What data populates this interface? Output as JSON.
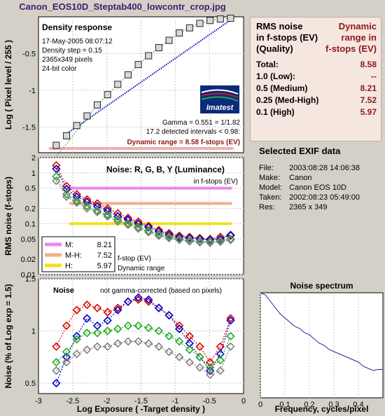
{
  "window_title": "Canon_EOS10D_Steptab400_lowcontr_crop.jpg",
  "density": {
    "heading": "Density response",
    "info": [
      "17-May-2005 08:07:12",
      "Density step = 0.15",
      "2365x349 pixels",
      "24-bit color"
    ],
    "gamma_text": "Gamma = 0.551 = 1/1.82",
    "intervals_text": "17.2 detected intervals < 0.98:",
    "dynamic_range_text": "Dynamic range = 8.58 f-stops (EV)",
    "logo_text": "Imatest"
  },
  "noise_table": {
    "header_left": [
      "RMS noise",
      "in f-stops (EV)",
      "(Quality)"
    ],
    "header_right": [
      "Dynamic",
      "range in",
      "f-stops (EV)"
    ],
    "rows": [
      {
        "label": "Total:",
        "value": "8.58"
      },
      {
        "label": "1.0   (Low):",
        "value": "--"
      },
      {
        "label": "0.5   (Medium)",
        "value": "8.21"
      },
      {
        "label": "0.25 (Med-High)",
        "value": "7.52"
      },
      {
        "label": "0.1   (High)",
        "value": "5.97"
      }
    ]
  },
  "exif": {
    "heading": "Selected EXIF data",
    "lines": [
      {
        "key": "File:",
        "value": "2003:08:28 14:06:38"
      },
      {
        "key": "Make:",
        "value": "Canon"
      },
      {
        "key": "Model:",
        "value": "Canon EOS 10D"
      },
      {
        "key": "Taken:",
        "value": "2002:08:23 05:49:00"
      },
      {
        "key": "Res:",
        "value": "2365 x 349"
      }
    ]
  },
  "colors": {
    "red": "#dd0000",
    "green": "#22aa22",
    "blue": "#0000cc",
    "gray": "#808080",
    "magenta_line": "#ee88ee",
    "peach_line": "#f4b08a",
    "yellow_line": "#f0e020",
    "density_fit": "#0000cc",
    "density_ideal": "#22aa22",
    "range_bar": "#f0b0b0",
    "table_bg": "#f6e6e0",
    "dark_red": "#8b1a1a"
  },
  "chart_data": [
    {
      "type": "scatter",
      "title": "Density response",
      "ylabel": "Log ( Pixel level / 255 )",
      "xlim": [
        -3,
        0
      ],
      "ylim": [
        -1.85,
        0
      ],
      "yticks": [
        "-0.5",
        "-1",
        "-1.5"
      ],
      "x": [
        -2.74,
        -2.59,
        -2.44,
        -2.29,
        -2.14,
        -1.99,
        -1.84,
        -1.69,
        -1.54,
        -1.39,
        -1.24,
        -1.09,
        -0.94,
        -0.79,
        -0.64,
        -0.49,
        -0.34,
        -0.19
      ],
      "y": [
        -1.75,
        -1.62,
        -1.48,
        -1.35,
        -1.2,
        -1.06,
        -0.92,
        -0.79,
        -0.65,
        -0.53,
        -0.42,
        -0.32,
        -0.22,
        -0.15,
        -0.09,
        -0.05,
        -0.03,
        -0.02
      ]
    },
    {
      "type": "line",
      "title": "Noise: R, G, B, Y (Luminance)",
      "subtitle": "in f-stops (EV)",
      "ylabel": "RMS noise (f-stops)",
      "xlim": [
        -3,
        0
      ],
      "ylim": [
        0.01,
        2
      ],
      "y_scale": "log",
      "yticks": [
        "2",
        "1",
        "0.5",
        "0.2",
        "0.1",
        "0.05",
        "0.02",
        "0.01"
      ],
      "reference_lines": [
        0.5,
        0.25,
        0.1
      ],
      "x": [
        -2.74,
        -2.59,
        -2.44,
        -2.29,
        -2.14,
        -1.99,
        -1.84,
        -1.69,
        -1.54,
        -1.39,
        -1.24,
        -1.09,
        -0.94,
        -0.79,
        -0.64,
        -0.49,
        -0.34,
        -0.19
      ],
      "series": [
        {
          "name": "R",
          "values": [
            1.4,
            0.55,
            0.38,
            0.3,
            0.25,
            0.2,
            0.16,
            0.13,
            0.11,
            0.09,
            0.075,
            0.065,
            0.058,
            0.055,
            0.052,
            0.05,
            0.055,
            0.058
          ]
        },
        {
          "name": "B",
          "values": [
            1.2,
            0.48,
            0.34,
            0.27,
            0.22,
            0.18,
            0.14,
            0.12,
            0.1,
            0.085,
            0.07,
            0.06,
            0.054,
            0.052,
            0.05,
            0.048,
            0.05,
            0.06
          ]
        },
        {
          "name": "G",
          "values": [
            0.85,
            0.38,
            0.28,
            0.22,
            0.18,
            0.15,
            0.12,
            0.1,
            0.085,
            0.072,
            0.062,
            0.055,
            0.05,
            0.047,
            0.045,
            0.044,
            0.046,
            0.05
          ]
        },
        {
          "name": "Y",
          "values": [
            0.7,
            0.34,
            0.26,
            0.2,
            0.17,
            0.14,
            0.11,
            0.095,
            0.08,
            0.068,
            0.058,
            0.052,
            0.048,
            0.045,
            0.043,
            0.042,
            0.044,
            0.048
          ]
        }
      ],
      "legend": [
        {
          "label": "M:",
          "value": "8.21"
        },
        {
          "label": "M-H:",
          "value": "7.52"
        },
        {
          "label": "H:",
          "value": "5.97"
        }
      ],
      "legend_notes": [
        "f-stop (EV)",
        "Dynamic range"
      ]
    },
    {
      "type": "line",
      "title": "Noise",
      "subtitle": "not gamma-corrected (based on pixels)",
      "xlabel": "Log Exposure ( -Target density )",
      "ylabel": "Noise (% of Log exp = 1.5)",
      "xlim": [
        -3,
        0
      ],
      "ylim": [
        0.4,
        1.5
      ],
      "xticks": [
        "-3",
        "-2.5",
        "-2",
        "-1.5",
        "-1",
        "-0.5",
        "0"
      ],
      "yticks": [
        "1.5",
        "1",
        "0.5"
      ],
      "x": [
        -2.74,
        -2.59,
        -2.44,
        -2.29,
        -2.14,
        -1.99,
        -1.84,
        -1.69,
        -1.54,
        -1.39,
        -1.24,
        -1.09,
        -0.94,
        -0.79,
        -0.64,
        -0.49,
        -0.34,
        -0.19
      ],
      "series": [
        {
          "name": "R",
          "values": [
            0.85,
            1.05,
            1.2,
            1.25,
            1.22,
            1.18,
            1.22,
            1.28,
            1.3,
            1.28,
            1.22,
            1.15,
            1.05,
            0.95,
            0.85,
            0.7,
            0.85,
            1.12
          ]
        },
        {
          "name": "B",
          "values": [
            0.5,
            0.75,
            0.95,
            1.12,
            1.05,
            1.1,
            1.2,
            1.28,
            1.32,
            1.3,
            1.22,
            1.15,
            1.02,
            0.88,
            0.75,
            0.62,
            0.78,
            1.1
          ]
        },
        {
          "name": "G",
          "values": [
            0.7,
            0.8,
            0.92,
            0.98,
            0.98,
            1.0,
            1.02,
            1.05,
            1.05,
            1.03,
            1.0,
            0.95,
            0.9,
            0.82,
            0.75,
            0.65,
            0.72,
            0.95
          ]
        },
        {
          "name": "Y",
          "values": [
            0.62,
            0.7,
            0.78,
            0.82,
            0.85,
            0.85,
            0.88,
            0.9,
            0.9,
            0.88,
            0.85,
            0.8,
            0.75,
            0.7,
            0.65,
            0.58,
            0.62,
            0.85
          ]
        }
      ]
    },
    {
      "type": "line",
      "title": "Noise spectrum",
      "xlabel": "Frequency, cycles/pixel",
      "xlim": [
        0,
        0.5
      ],
      "ylim": [
        0,
        1
      ],
      "xticks": [
        "0",
        "0.1",
        "0.2",
        "0.3",
        "0.4"
      ],
      "x": [
        0.0,
        0.02,
        0.04,
        0.06,
        0.08,
        0.1,
        0.12,
        0.14,
        0.16,
        0.18,
        0.2,
        0.22,
        0.24,
        0.26,
        0.28,
        0.3,
        0.32,
        0.34,
        0.36,
        0.38,
        0.4,
        0.42,
        0.44,
        0.46,
        0.48,
        0.5
      ],
      "values": [
        1.0,
        0.98,
        0.92,
        0.86,
        0.8,
        0.76,
        0.72,
        0.68,
        0.66,
        0.62,
        0.6,
        0.56,
        0.52,
        0.5,
        0.46,
        0.44,
        0.42,
        0.4,
        0.38,
        0.36,
        0.34,
        0.3,
        0.28,
        0.26,
        0.27,
        0.27
      ]
    }
  ]
}
